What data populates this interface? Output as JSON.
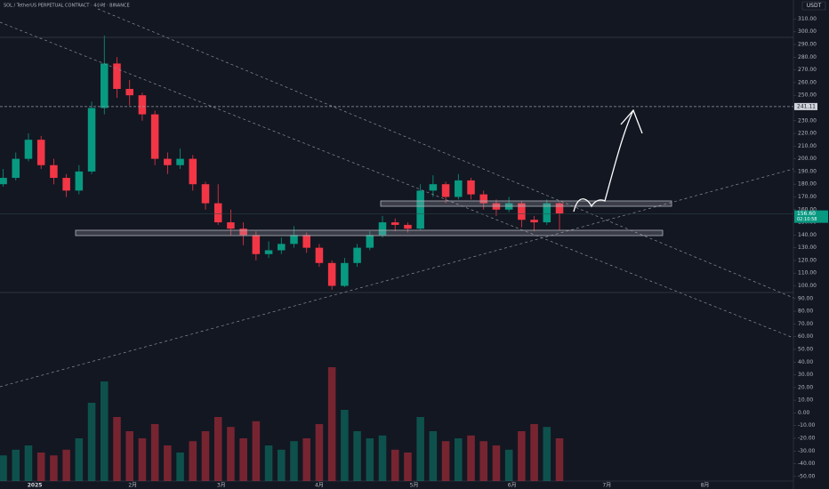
{
  "chart_data": {
    "type": "candlestick",
    "title": "SOL / TetherUS PERPETUAL CONTRACT · 4小时 · BINANCE",
    "currency": "USDT",
    "up_color": "#089981",
    "down_color": "#f23645",
    "xlim": [
      -11,
      240
    ],
    "ylim": [
      -55,
      325
    ],
    "xticks": [
      {
        "value": 0,
        "label": "2025"
      },
      {
        "value": 31,
        "label": "2月"
      },
      {
        "value": 59,
        "label": "3月"
      },
      {
        "value": 90,
        "label": "4月"
      },
      {
        "value": 120,
        "label": "5月"
      },
      {
        "value": 151,
        "label": "6月"
      },
      {
        "value": 181,
        "label": "7月"
      },
      {
        "value": 212,
        "label": "8月"
      }
    ],
    "yticks": [
      {
        "value": 310,
        "label": "310.00"
      },
      {
        "value": 300,
        "label": "300.00"
      },
      {
        "value": 290,
        "label": "290.00"
      },
      {
        "value": 280,
        "label": "280.00"
      },
      {
        "value": 270,
        "label": "270.00"
      },
      {
        "value": 260,
        "label": "260.00"
      },
      {
        "value": 250,
        "label": "250.00"
      },
      {
        "value": 240,
        "label": "240.00"
      },
      {
        "value": 230,
        "label": "230.00"
      },
      {
        "value": 220,
        "label": "220.00"
      },
      {
        "value": 210,
        "label": "210.00"
      },
      {
        "value": 200,
        "label": "200.00"
      },
      {
        "value": 190,
        "label": "190.00"
      },
      {
        "value": 180,
        "label": "180.00"
      },
      {
        "value": 170,
        "label": "170.00"
      },
      {
        "value": 160,
        "label": "160.00"
      },
      {
        "value": 150,
        "label": "150.00"
      },
      {
        "value": 140,
        "label": "140.00"
      },
      {
        "value": 130,
        "label": "130.00"
      },
      {
        "value": 120,
        "label": "120.00"
      },
      {
        "value": 110,
        "label": "110.00"
      },
      {
        "value": 100,
        "label": "100.00"
      },
      {
        "value": 90,
        "label": "90.00"
      },
      {
        "value": 80,
        "label": "80.00"
      },
      {
        "value": 70,
        "label": "70.00"
      },
      {
        "value": 60,
        "label": "60.00"
      },
      {
        "value": 50,
        "label": "50.00"
      },
      {
        "value": 40,
        "label": "40.00"
      },
      {
        "value": 30,
        "label": "30.00"
      },
      {
        "value": 20,
        "label": "20.00"
      },
      {
        "value": 10,
        "label": "10.00"
      },
      {
        "value": 0,
        "label": "0.00"
      },
      {
        "value": -10,
        "label": "-10.00"
      },
      {
        "value": -20,
        "label": "-20.00"
      },
      {
        "value": -30,
        "label": "-30.00"
      },
      {
        "value": -40,
        "label": "-40.00"
      },
      {
        "value": -50,
        "label": "-50.00"
      }
    ],
    "target_level": 241.11,
    "last_price": {
      "value": 156.6,
      "label": "156.60"
    },
    "countdown": "02:10:58",
    "x": [
      -10,
      -6,
      -2,
      2,
      6,
      10,
      14,
      18,
      22,
      26,
      30,
      34,
      38,
      42,
      46,
      50,
      54,
      58,
      62,
      66,
      70,
      74,
      78,
      82,
      86,
      90,
      94,
      98,
      102,
      106,
      110,
      114,
      118,
      122,
      126,
      130,
      134,
      138,
      142,
      146,
      150,
      154,
      158,
      162,
      166
    ],
    "open": [
      180,
      185,
      200,
      215,
      195,
      185,
      175,
      190,
      240,
      275,
      255,
      250,
      235,
      200,
      195,
      200,
      180,
      165,
      150,
      145,
      140,
      125,
      128,
      133,
      140,
      130,
      118,
      100,
      118,
      130,
      140,
      150,
      148,
      145,
      175,
      180,
      170,
      183,
      172,
      165,
      160,
      165,
      152,
      150,
      165
    ],
    "high": [
      192,
      205,
      220,
      218,
      200,
      188,
      195,
      245,
      297,
      280,
      262,
      252,
      238,
      205,
      208,
      203,
      182,
      180,
      160,
      150,
      143,
      135,
      138,
      147,
      142,
      133,
      120,
      122,
      133,
      143,
      155,
      153,
      150,
      180,
      187,
      182,
      188,
      185,
      175,
      168,
      170,
      167,
      155,
      168,
      166
    ],
    "low": [
      178,
      183,
      198,
      192,
      180,
      170,
      172,
      188,
      235,
      248,
      242,
      230,
      195,
      188,
      192,
      175,
      160,
      148,
      140,
      132,
      120,
      122,
      125,
      130,
      126,
      115,
      97,
      99,
      115,
      128,
      138,
      143,
      142,
      144,
      170,
      165,
      168,
      168,
      160,
      155,
      158,
      146,
      143,
      148,
      144
    ],
    "close": [
      185,
      200,
      215,
      195,
      185,
      175,
      190,
      240,
      275,
      255,
      250,
      235,
      200,
      195,
      200,
      180,
      165,
      150,
      145,
      140,
      125,
      128,
      133,
      140,
      130,
      118,
      100,
      118,
      130,
      140,
      150,
      148,
      145,
      175,
      180,
      170,
      183,
      172,
      165,
      160,
      165,
      152,
      150,
      165,
      157
    ],
    "volume": [
      18,
      22,
      25,
      20,
      18,
      22,
      30,
      55,
      70,
      45,
      35,
      30,
      40,
      25,
      20,
      28,
      35,
      45,
      38,
      30,
      42,
      25,
      22,
      28,
      30,
      40,
      80,
      50,
      35,
      30,
      32,
      22,
      20,
      45,
      35,
      28,
      30,
      32,
      28,
      25,
      22,
      35,
      40,
      38,
      30
    ]
  }
}
